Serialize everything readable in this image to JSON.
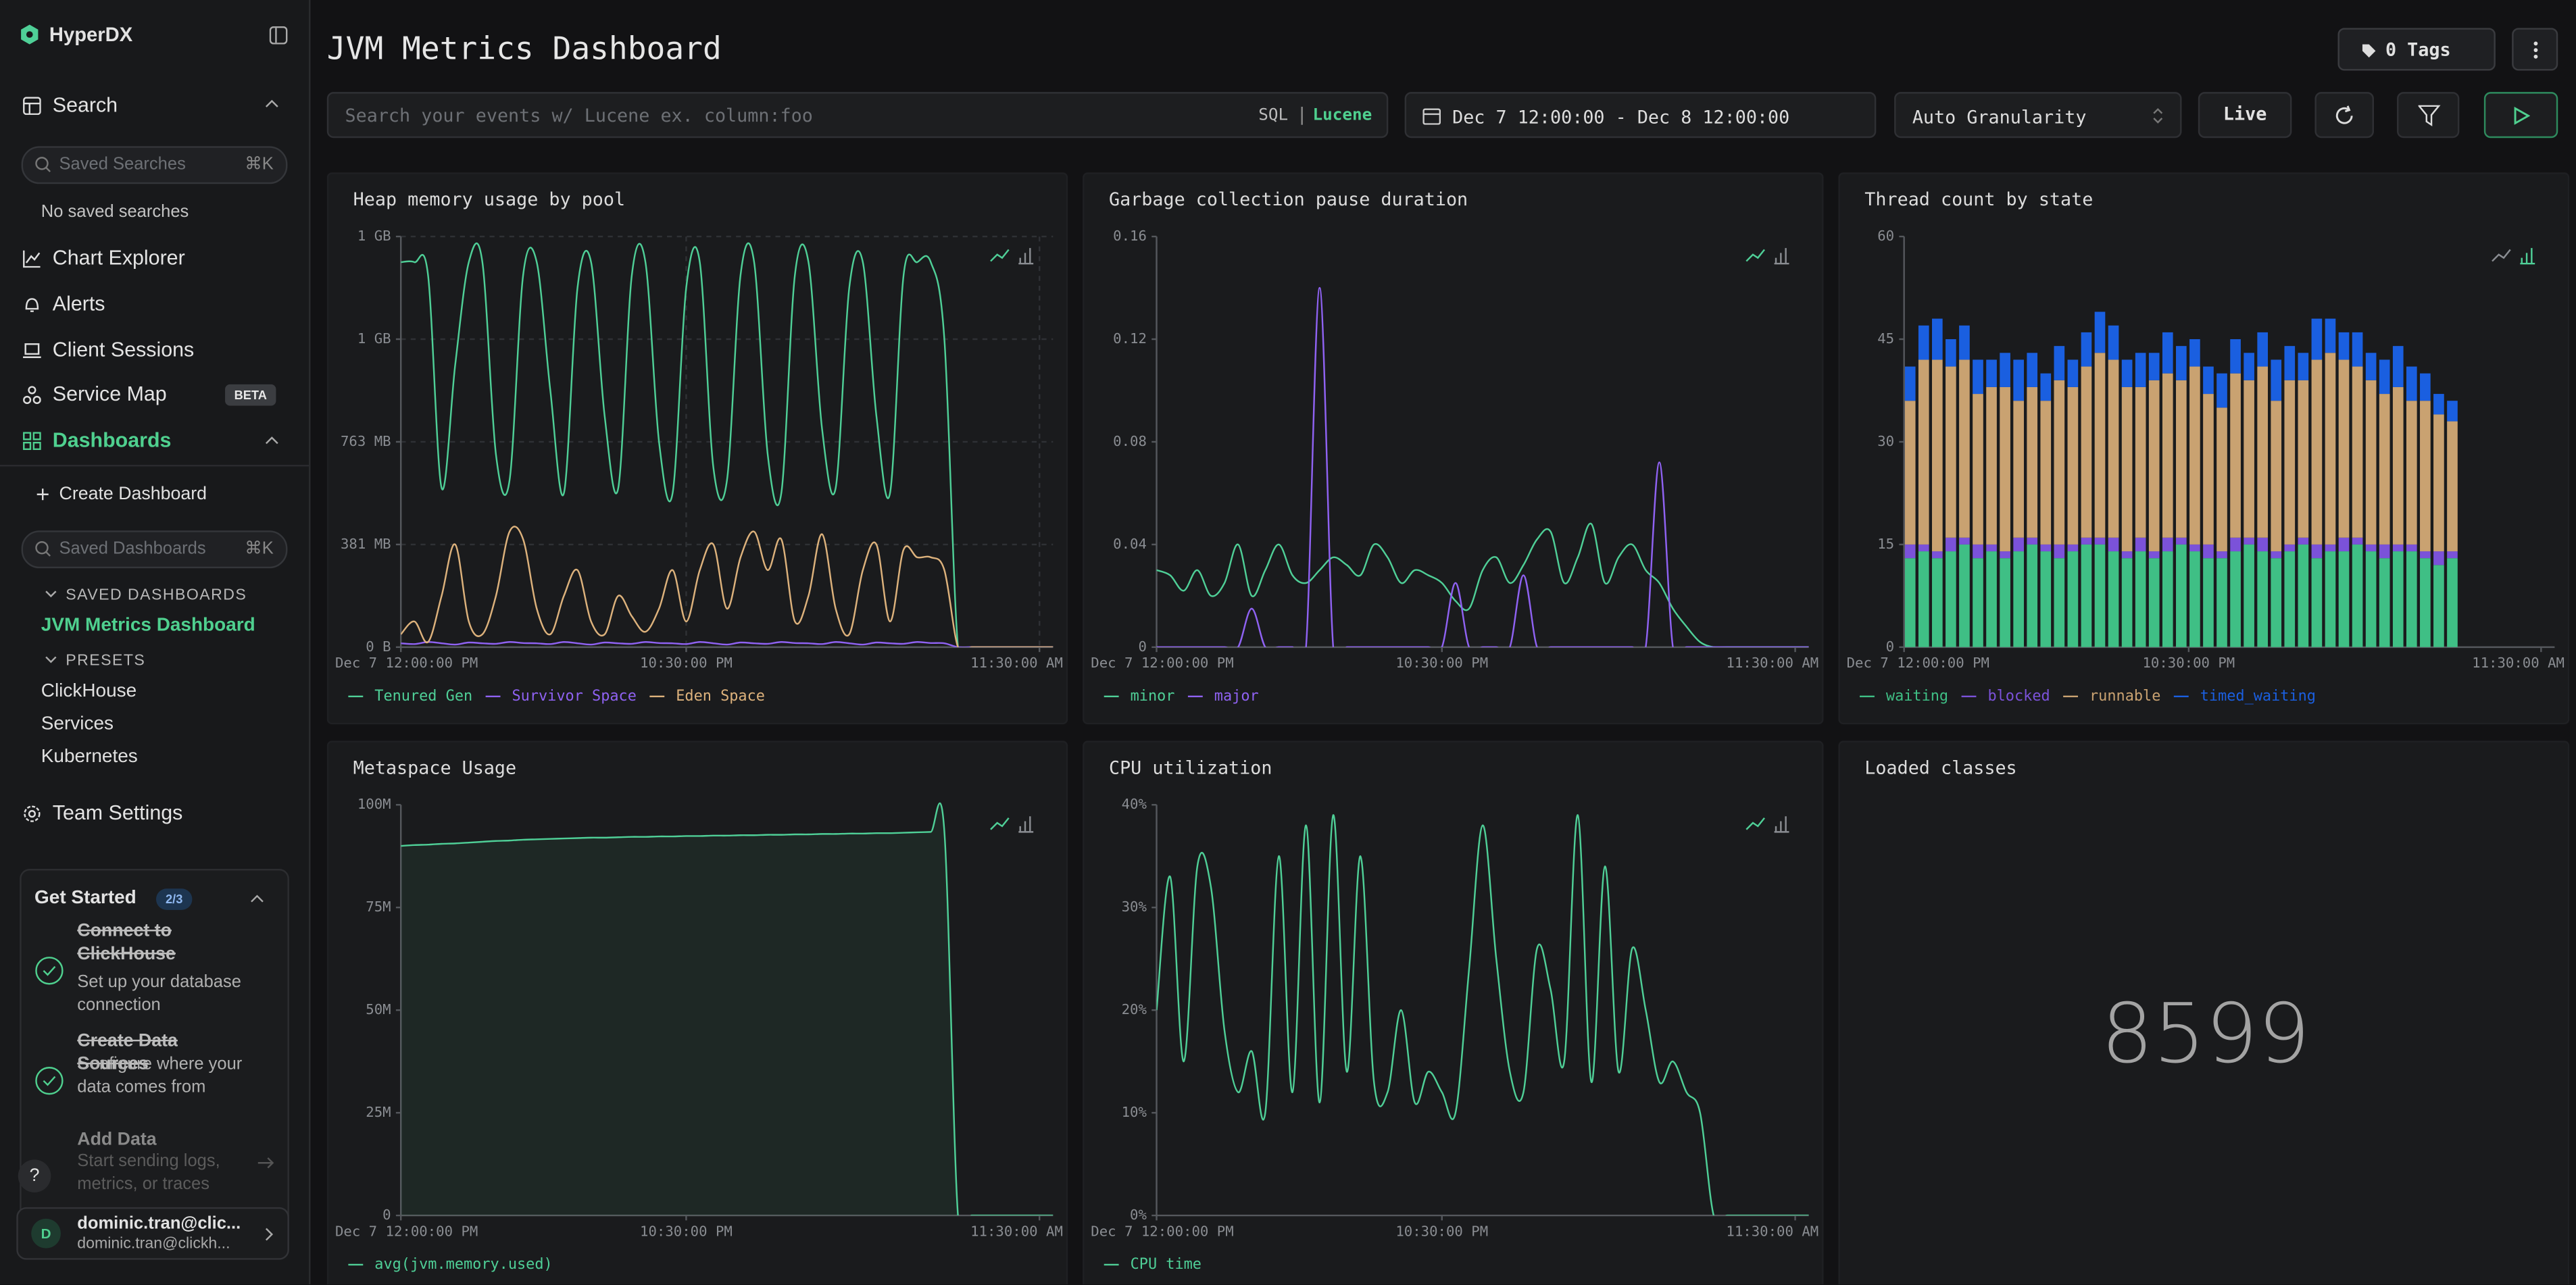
{
  "sidebar": {
    "brand": "HyperDX",
    "search": "Search",
    "saved_searches_placeholder": "Saved Searches",
    "shortcut_searches": "⌘K",
    "no_saved_searches": "No saved searches",
    "chart_explorer": "Chart Explorer",
    "alerts": "Alerts",
    "client_sessions": "Client Sessions",
    "service_map": "Service Map",
    "beta": "BETA",
    "dashboards": "Dashboards",
    "create_dashboard": "Create Dashboard",
    "saved_dashboards_placeholder": "Saved Dashboards",
    "shortcut_dashboards": "⌘K",
    "saved_dashboards_heading": "SAVED DASHBOARDS",
    "saved_dashboards": [
      "JVM Metrics Dashboard"
    ],
    "presets_heading": "PRESETS",
    "presets": [
      "ClickHouse",
      "Services",
      "Kubernetes"
    ],
    "team_settings": "Team Settings",
    "get_started": {
      "title": "Get Started",
      "progress": "2/3",
      "steps": [
        {
          "title": "Connect to ClickHouse",
          "description": "Set up your database connection",
          "done": true
        },
        {
          "title": "Create Data Sources",
          "description": "Configure where your data comes from",
          "done": true
        },
        {
          "title": "Add Data",
          "description": "Start sending logs, metrics, or traces",
          "done": false
        }
      ]
    },
    "help": "?",
    "user": {
      "initial": "D",
      "name": "dominic.tran@clic...",
      "email": "dominic.tran@clickh..."
    }
  },
  "header": {
    "title": "JVM Metrics Dashboard",
    "tags": "0 Tags",
    "search_placeholder": "Search your events w/ Lucene ex. column:foo",
    "sql": "SQL",
    "lucene": "Lucene",
    "date_range": "Dec 7 12:00:00 - Dec 8 12:00:00",
    "granularity": "Auto Granularity",
    "live": "Live"
  },
  "chart_data": [
    {
      "type": "line",
      "title": "Heap memory usage by pool",
      "grid": true,
      "x": [
        0,
        0.5,
        1,
        1.5,
        2,
        2.5,
        3,
        3.5,
        4,
        4.5,
        5,
        5.5,
        6,
        6.5,
        7,
        7.5,
        8,
        8.5,
        9,
        9.5,
        10,
        10.5,
        11,
        11.5,
        12,
        12.5,
        13,
        13.5,
        14,
        14.5,
        15,
        15.5,
        16,
        16.5,
        17,
        17.5,
        18,
        18.5,
        19,
        19.5,
        20,
        20.5,
        21,
        21.5,
        22,
        22.5,
        23,
        23.5,
        24
      ],
      "xlim": [
        0,
        24
      ],
      "xticks": [
        {
          "value": 0,
          "label": "Dec 7 12:00:00 PM"
        },
        {
          "value": 10.5,
          "label": "10:30:00 PM"
        },
        {
          "value": 23.5,
          "label": "11:30:00 AM"
        }
      ],
      "ylim": [
        0,
        1600000000.0
      ],
      "yticks": [
        {
          "value": 0,
          "label": "0 B"
        },
        {
          "value": 400000000.0,
          "label": "381 MB"
        },
        {
          "value": 800000000.0,
          "label": "763 MB"
        },
        {
          "value": 1200000000.0,
          "label": "1 GB"
        },
        {
          "value": 1600000000.0,
          "label": "1 GB"
        }
      ],
      "series": [
        {
          "name": "Tenured Gen",
          "color": "#4fcf97",
          "values": [
            1500000000.0,
            1500000000.0,
            1450000000.0,
            620000000.0,
            1100000000.0,
            1500000000.0,
            1500000000.0,
            750000000.0,
            650000000.0,
            1450000000.0,
            1500000000.0,
            1000000000.0,
            600000000.0,
            1400000000.0,
            1500000000.0,
            900000000.0,
            620000000.0,
            1450000000.0,
            1500000000.0,
            800000000.0,
            600000000.0,
            1400000000.0,
            1500000000.0,
            700000000.0,
            650000000.0,
            1450000000.0,
            1500000000.0,
            750000000.0,
            600000000.0,
            1450000000.0,
            1500000000.0,
            850000000.0,
            620000000.0,
            1400000000.0,
            1500000000.0,
            900000000.0,
            600000000.0,
            1450000000.0,
            1500000000.0,
            1500000000.0,
            1200000000.0,
            0,
            0,
            0,
            0,
            0,
            0,
            0,
            0
          ]
        },
        {
          "name": "Survivor Space",
          "color": "#8f62f2",
          "values": [
            15000000.0,
            12000000.0,
            20000000.0,
            15000000.0,
            10000000.0,
            18000000.0,
            15000000.0,
            13000000.0,
            20000000.0,
            16000000.0,
            15000000.0,
            12000000.0,
            20000000.0,
            15000000.0,
            10000000.0,
            18000000.0,
            15000000.0,
            13000000.0,
            20000000.0,
            16000000.0,
            15000000.0,
            12000000.0,
            20000000.0,
            15000000.0,
            10000000.0,
            18000000.0,
            15000000.0,
            13000000.0,
            20000000.0,
            16000000.0,
            15000000.0,
            12000000.0,
            20000000.0,
            15000000.0,
            10000000.0,
            18000000.0,
            15000000.0,
            13000000.0,
            20000000.0,
            16000000.0,
            15000000.0,
            0,
            0,
            0,
            0,
            0,
            0,
            0,
            0
          ]
        },
        {
          "name": "Eden Space",
          "color": "#ddb27c",
          "values": [
            50000000.0,
            100000000.0,
            20000000.0,
            200000000.0,
            400000000.0,
            100000000.0,
            50000000.0,
            200000000.0,
            450000000.0,
            420000000.0,
            150000000.0,
            50000000.0,
            200000000.0,
            300000000.0,
            100000000.0,
            50000000.0,
            200000000.0,
            120000000.0,
            60000000.0,
            150000000.0,
            300000000.0,
            100000000.0,
            300000000.0,
            400000000.0,
            150000000.0,
            350000000.0,
            450000000.0,
            300000000.0,
            420000000.0,
            100000000.0,
            200000000.0,
            440000000.0,
            150000000.0,
            50000000.0,
            300000000.0,
            400000000.0,
            100000000.0,
            380000000.0,
            350000000.0,
            350000000.0,
            300000000.0,
            0,
            0,
            0,
            0,
            0,
            0,
            0,
            0
          ]
        }
      ]
    },
    {
      "type": "line",
      "title": "Garbage collection pause duration",
      "grid": false,
      "x": [
        0,
        0.5,
        1,
        1.5,
        2,
        2.5,
        3,
        3.5,
        4,
        4.5,
        5,
        5.5,
        6,
        6.5,
        7,
        7.5,
        8,
        8.5,
        9,
        9.5,
        10,
        10.5,
        11,
        11.5,
        12,
        12.5,
        13,
        13.5,
        14,
        14.5,
        15,
        15.5,
        16,
        16.5,
        17,
        17.5,
        18,
        18.5,
        19,
        19.5,
        20,
        20.5,
        21,
        21.5,
        22,
        22.5,
        23,
        23.5,
        24
      ],
      "xlim": [
        0,
        24
      ],
      "xticks": [
        {
          "value": 0,
          "label": "Dec 7 12:00:00 PM"
        },
        {
          "value": 10.5,
          "label": "10:30:00 PM"
        },
        {
          "value": 23.5,
          "label": "11:30:00 AM"
        }
      ],
      "ylim": [
        0,
        0.16
      ],
      "yticks": [
        0,
        0.04,
        0.08,
        0.12,
        0.16
      ],
      "series": [
        {
          "name": "minor",
          "color": "#4fcf97",
          "values": [
            0.03,
            0.028,
            0.022,
            0.03,
            0.02,
            0.025,
            0.04,
            0.02,
            0.03,
            0.04,
            0.028,
            0.025,
            0.03,
            0.035,
            0.032,
            0.028,
            0.04,
            0.035,
            0.025,
            0.03,
            0.028,
            0.025,
            0.018,
            0.015,
            0.03,
            0.035,
            0.025,
            0.032,
            0.042,
            0.045,
            0.025,
            0.035,
            0.048,
            0.025,
            0.035,
            0.04,
            0.03,
            0.025,
            0.015,
            0.008,
            0.002,
            0,
            0,
            0,
            0,
            0,
            0,
            0,
            0
          ]
        },
        {
          "name": "major",
          "color": "#8f62f2",
          "values": [
            0,
            0,
            0,
            0,
            0,
            0,
            0,
            0.015,
            0,
            0,
            0,
            0,
            0.14,
            0,
            0,
            0,
            0,
            0,
            0,
            0,
            0,
            0,
            0.025,
            0,
            0,
            0,
            0,
            0.028,
            0,
            0,
            0,
            0,
            0,
            0,
            0,
            0,
            0,
            0.072,
            0,
            0,
            0,
            0,
            0,
            0,
            0,
            0,
            0,
            0,
            0
          ]
        }
      ]
    },
    {
      "type": "bar",
      "title": "Thread count by state",
      "grid": false,
      "x": [
        0,
        0.5,
        1,
        1.5,
        2,
        2.5,
        3,
        3.5,
        4,
        4.5,
        5,
        5.5,
        6,
        6.5,
        7,
        7.5,
        8,
        8.5,
        9,
        9.5,
        10,
        10.5,
        11,
        11.5,
        12,
        12.5,
        13,
        13.5,
        14,
        14.5,
        15,
        15.5,
        16,
        16.5,
        17,
        17.5,
        18,
        18.5,
        19,
        19.5,
        20
      ],
      "xlim": [
        0,
        24
      ],
      "xticks": [
        {
          "value": 0,
          "label": "Dec 7 12:00:00 PM"
        },
        {
          "value": 10.5,
          "label": "10:30:00 PM"
        },
        {
          "value": 23.5,
          "label": "11:30:00 AM"
        }
      ],
      "ylim": [
        0,
        60
      ],
      "yticks": [
        0,
        15,
        30,
        45,
        60
      ],
      "series": [
        {
          "name": "waiting",
          "color": "#3fbf85",
          "values": [
            13,
            14,
            13,
            14,
            15,
            13,
            14,
            13,
            14,
            15,
            14,
            13,
            14,
            15,
            15,
            14,
            13,
            14,
            13,
            14,
            15,
            14,
            13,
            13,
            14,
            15,
            14,
            13,
            14,
            15,
            13,
            14,
            14,
            15,
            14,
            13,
            14,
            14,
            13,
            12,
            13
          ]
        },
        {
          "name": "blocked",
          "color": "#7b52d9",
          "values": [
            2,
            1,
            1,
            2,
            1,
            2,
            1,
            1,
            2,
            1,
            1,
            2,
            1,
            1,
            1,
            2,
            1,
            2,
            1,
            2,
            1,
            1,
            2,
            1,
            2,
            1,
            2,
            1,
            1,
            1,
            2,
            1,
            2,
            1,
            1,
            2,
            1,
            1,
            1,
            2,
            1
          ]
        },
        {
          "name": "runnable",
          "color": "#c9a271",
          "values": [
            21,
            27,
            28,
            25,
            26,
            22,
            23,
            24,
            20,
            22,
            21,
            24,
            23,
            25,
            27,
            26,
            24,
            22,
            25,
            24,
            23,
            26,
            22,
            21,
            24,
            23,
            25,
            22,
            24,
            23,
            27,
            28,
            26,
            25,
            24,
            22,
            23,
            21,
            22,
            20,
            19
          ]
        },
        {
          "name": "timed_waiting",
          "color": "#1a5fe0",
          "values": [
            5,
            5,
            6,
            4,
            5,
            5,
            4,
            5,
            6,
            5,
            4,
            5,
            4,
            5,
            6,
            5,
            4,
            5,
            4,
            6,
            5,
            4,
            4,
            5,
            5,
            4,
            5,
            6,
            5,
            4,
            6,
            5,
            4,
            5,
            4,
            5,
            6,
            5,
            4,
            3,
            3
          ]
        }
      ]
    },
    {
      "type": "area",
      "title": "Metaspace Usage",
      "grid": false,
      "x": [
        0,
        0.5,
        1,
        1.5,
        2,
        2.5,
        3,
        3.5,
        4,
        4.5,
        5,
        5.5,
        6,
        6.5,
        7,
        7.5,
        8,
        8.5,
        9,
        9.5,
        10,
        10.5,
        11,
        11.5,
        12,
        12.5,
        13,
        13.5,
        14,
        14.5,
        15,
        15.5,
        16,
        16.5,
        17,
        17.5,
        18,
        18.5,
        19,
        19.5,
        20,
        20.5,
        21,
        21.5,
        22,
        22.5,
        23,
        23.5,
        24
      ],
      "xlim": [
        0,
        24
      ],
      "xticks": [
        {
          "value": 0,
          "label": "Dec 7 12:00:00 PM"
        },
        {
          "value": 10.5,
          "label": "10:30:00 PM"
        },
        {
          "value": 23.5,
          "label": "11:30:00 AM"
        }
      ],
      "ylim": [
        0,
        100000000.0
      ],
      "yticks": [
        0,
        {
          "value": 25000000.0,
          "label": "25M"
        },
        {
          "value": 50000000.0,
          "label": "50M"
        },
        {
          "value": 75000000.0,
          "label": "75M"
        },
        {
          "value": 100000000.0,
          "label": "100M"
        }
      ],
      "series": [
        {
          "name": "avg(jvm.memory.used)",
          "color": "#4fcf97",
          "values": [
            90000000.0,
            90200000.0,
            90300000.0,
            90500000.0,
            90600000.0,
            90800000.0,
            91000000.0,
            91200000.0,
            91300000.0,
            91500000.0,
            91600000.0,
            91700000.0,
            91800000.0,
            91900000.0,
            92000000.0,
            92000000.0,
            92100000.0,
            92200000.0,
            92200000.0,
            92300000.0,
            92300000.0,
            92400000.0,
            92400000.0,
            92500000.0,
            92500000.0,
            92600000.0,
            92600000.0,
            92700000.0,
            92700000.0,
            92800000.0,
            92800000.0,
            92900000.0,
            92900000.0,
            93000000.0,
            93000000.0,
            93100000.0,
            93100000.0,
            93200000.0,
            93300000.0,
            93400000.0,
            93500000.0,
            0,
            0,
            0,
            0,
            0,
            0,
            0,
            0
          ]
        }
      ]
    },
    {
      "type": "line",
      "title": "CPU utilization",
      "grid": false,
      "x": [
        0,
        0.5,
        1,
        1.5,
        2,
        2.5,
        3,
        3.5,
        4,
        4.5,
        5,
        5.5,
        6,
        6.5,
        7,
        7.5,
        8,
        8.5,
        9,
        9.5,
        10,
        10.5,
        11,
        11.5,
        12,
        12.5,
        13,
        13.5,
        14,
        14.5,
        15,
        15.5,
        16,
        16.5,
        17,
        17.5,
        18,
        18.5,
        19,
        19.5,
        20,
        20.5,
        21,
        21.5,
        22,
        22.5,
        23,
        23.5,
        24
      ],
      "xlim": [
        0,
        24
      ],
      "xticks": [
        {
          "value": 0,
          "label": "Dec 7 12:00:00 PM"
        },
        {
          "value": 10.5,
          "label": "10:30:00 PM"
        },
        {
          "value": 23.5,
          "label": "11:30:00 AM"
        }
      ],
      "ylim": [
        0,
        40
      ],
      "yticks": [
        {
          "value": 0,
          "label": "0%"
        },
        {
          "value": 10,
          "label": "10%"
        },
        {
          "value": 20,
          "label": "20%"
        },
        {
          "value": 30,
          "label": "30%"
        },
        {
          "value": 40,
          "label": "40%"
        }
      ],
      "series": [
        {
          "name": "CPU time",
          "color": "#4fcf97",
          "values": [
            20,
            33,
            15,
            34,
            32,
            18,
            12,
            16,
            10,
            35,
            12,
            38,
            11,
            39,
            14,
            35,
            13,
            12,
            20,
            11,
            14,
            12,
            10,
            24,
            38,
            25,
            14,
            12,
            26,
            22,
            15,
            39,
            13,
            34,
            14,
            26,
            20,
            13,
            15,
            12,
            10,
            0,
            0,
            0,
            0,
            0,
            0,
            0,
            0
          ]
        }
      ]
    },
    {
      "type": "number",
      "title": "Loaded classes",
      "value": 8599
    }
  ]
}
